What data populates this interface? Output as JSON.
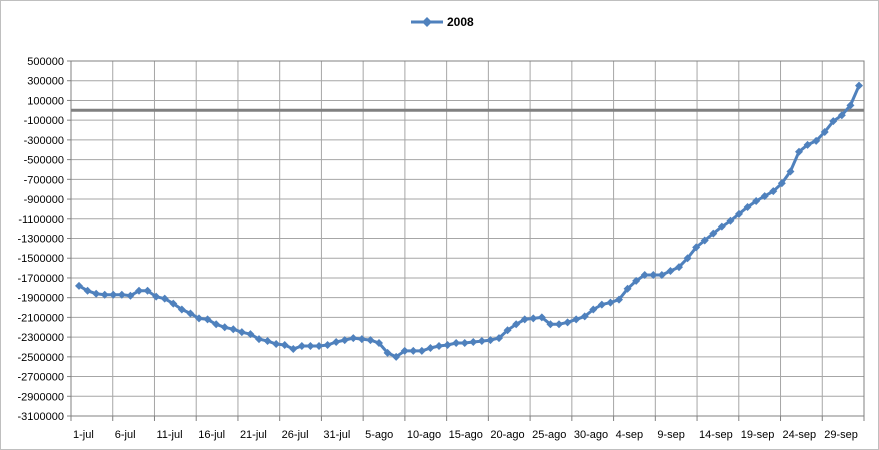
{
  "chart_data": {
    "type": "line",
    "title": "",
    "xlabel": "",
    "ylabel": "",
    "ylim": [
      -3100000,
      500000
    ],
    "yticks": [
      500000,
      300000,
      100000,
      -100000,
      -300000,
      -500000,
      -700000,
      -900000,
      -1100000,
      -1300000,
      -1500000,
      -1700000,
      -1900000,
      -2100000,
      -2300000,
      -2500000,
      -2700000,
      -2900000,
      -3100000
    ],
    "ytick_labels": [
      "500000",
      "300000",
      "100000",
      "-100000",
      "-300000",
      "-500000",
      "-700000",
      "-900000",
      "-1100000",
      "-1300000",
      "-1500000",
      "-1700000",
      "-1900000",
      "-2100000",
      "-2300000",
      "-2500000",
      "-2700000",
      "-2900000",
      "-3100000"
    ],
    "xtick_labels": [
      "1-jul",
      "6-jul",
      "11-jul",
      "16-jul",
      "21-jul",
      "26-jul",
      "31-jul",
      "5-ago",
      "10-ago",
      "15-ago",
      "20-ago",
      "25-ago",
      "30-ago",
      "4-sep",
      "9-sep",
      "14-sep",
      "19-sep",
      "24-sep",
      "29-sep"
    ],
    "grid": true,
    "legend_position": "top",
    "reference_line": {
      "value": 0,
      "color": "#808080"
    },
    "series": [
      {
        "name": "2008",
        "color": "#4f81bd",
        "marker": "diamond",
        "x": [
          "1-jul",
          "2-jul",
          "3-jul",
          "4-jul",
          "5-jul",
          "6-jul",
          "7-jul",
          "8-jul",
          "9-jul",
          "10-jul",
          "11-jul",
          "12-jul",
          "13-jul",
          "14-jul",
          "15-jul",
          "16-jul",
          "17-jul",
          "18-jul",
          "19-jul",
          "20-jul",
          "21-jul",
          "22-jul",
          "23-jul",
          "24-jul",
          "25-jul",
          "26-jul",
          "27-jul",
          "28-jul",
          "29-jul",
          "30-jul",
          "31-jul",
          "1-ago",
          "2-ago",
          "3-ago",
          "4-ago",
          "5-ago",
          "6-ago",
          "7-ago",
          "8-ago",
          "9-ago",
          "10-ago",
          "11-ago",
          "12-ago",
          "13-ago",
          "14-ago",
          "15-ago",
          "16-ago",
          "17-ago",
          "18-ago",
          "19-ago",
          "20-ago",
          "21-ago",
          "22-ago",
          "23-ago",
          "24-ago",
          "25-ago",
          "26-ago",
          "27-ago",
          "28-ago",
          "29-ago",
          "30-ago",
          "31-ago",
          "1-sep",
          "2-sep",
          "3-sep",
          "4-sep",
          "5-sep",
          "6-sep",
          "7-sep",
          "8-sep",
          "9-sep",
          "10-sep",
          "11-sep",
          "12-sep",
          "13-sep",
          "14-sep",
          "15-sep",
          "16-sep",
          "17-sep",
          "18-sep",
          "19-sep",
          "20-sep",
          "21-sep",
          "22-sep",
          "23-sep",
          "24-sep",
          "25-sep",
          "26-sep",
          "27-sep",
          "28-sep",
          "29-sep",
          "30-sep"
        ],
        "values": [
          -1780000,
          -1830000,
          -1860000,
          -1870000,
          -1870000,
          -1870000,
          -1880000,
          -1830000,
          -1830000,
          -1890000,
          -1910000,
          -1960000,
          -2020000,
          -2060000,
          -2110000,
          -2120000,
          -2170000,
          -2200000,
          -2220000,
          -2250000,
          -2270000,
          -2320000,
          -2340000,
          -2370000,
          -2380000,
          -2420000,
          -2390000,
          -2390000,
          -2390000,
          -2380000,
          -2350000,
          -2330000,
          -2310000,
          -2320000,
          -2330000,
          -2360000,
          -2460000,
          -2500000,
          -2440000,
          -2440000,
          -2440000,
          -2410000,
          -2390000,
          -2380000,
          -2360000,
          -2360000,
          -2350000,
          -2340000,
          -2330000,
          -2310000,
          -2230000,
          -2170000,
          -2120000,
          -2110000,
          -2100000,
          -2170000,
          -2170000,
          -2150000,
          -2120000,
          -2090000,
          -2020000,
          -1970000,
          -1950000,
          -1920000,
          -1810000,
          -1730000,
          -1670000,
          -1670000,
          -1670000,
          -1630000,
          -1590000,
          -1500000,
          -1390000,
          -1320000,
          -1250000,
          -1180000,
          -1120000,
          -1050000,
          -980000,
          -920000,
          -870000,
          -820000,
          -740000,
          -620000,
          -420000,
          -350000,
          -310000,
          -220000,
          -110000,
          -50000,
          50000,
          250000
        ]
      }
    ]
  }
}
